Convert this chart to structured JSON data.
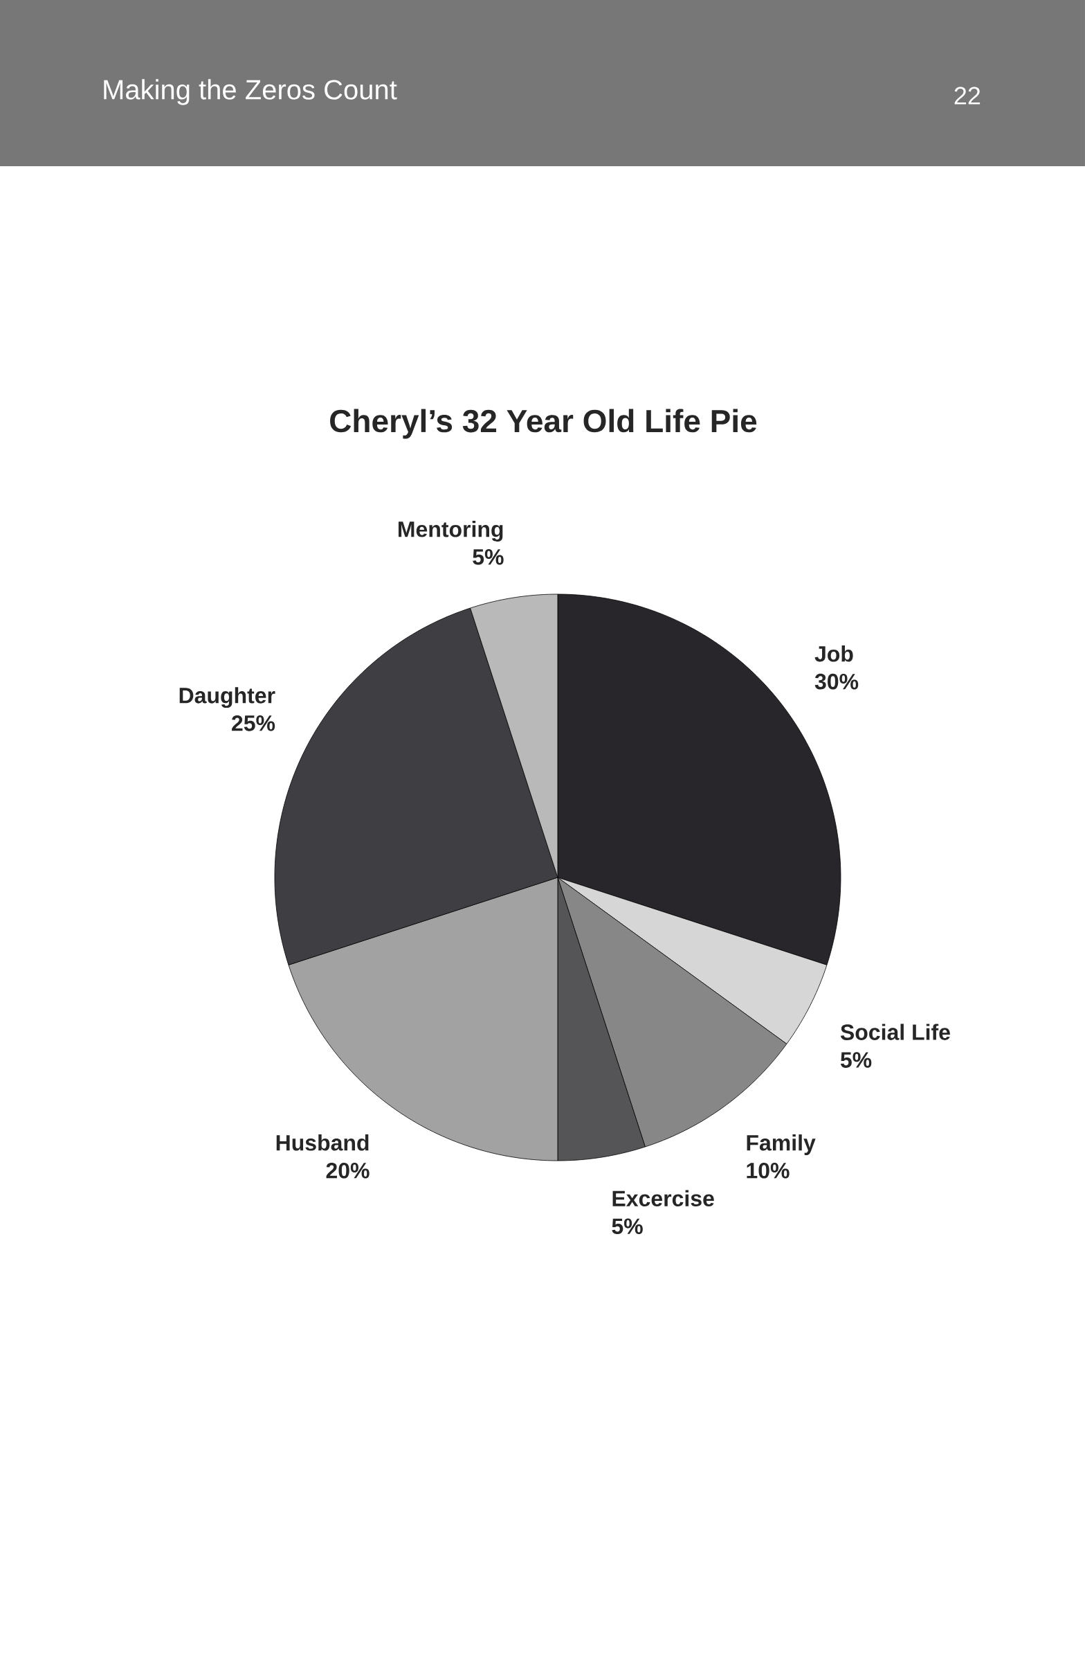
{
  "chart_data": {
    "type": "pie",
    "title": "Cheryl’s 32 Year Old Life Pie",
    "categories": [
      "Job",
      "Social Life",
      "Family",
      "Excercise",
      "Husband",
      "Daughter",
      "Mentoring"
    ],
    "values": [
      30,
      5,
      10,
      5,
      20,
      25,
      5
    ],
    "value_labels": [
      "30%",
      "5%",
      "10%",
      "5%",
      "20%",
      "25%",
      "5%"
    ],
    "colors": [
      "#29262b",
      "#d6d6d6",
      "#878787",
      "#555457",
      "#a2a2a2",
      "#3f3e43",
      "#b9b9b9"
    ],
    "annotations": [
      "Making the Zeros Count",
      "22"
    ]
  }
}
